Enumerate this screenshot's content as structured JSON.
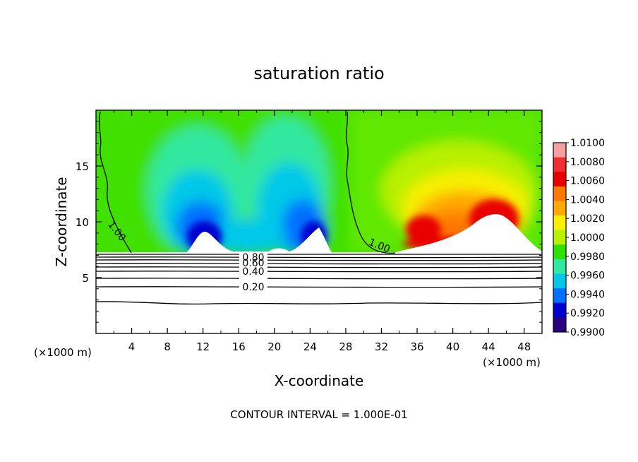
{
  "chart_data": {
    "type": "heatmap",
    "title": "saturation ratio",
    "xlabel": "X-coordinate",
    "ylabel": "Z-coordinate",
    "x_unit_left": "(×1000 m)",
    "x_unit_right": "(×1000 m)",
    "footer": "CONTOUR INTERVAL = 1.000E-01",
    "xlim": [
      0,
      50
    ],
    "ylim": [
      0,
      20
    ],
    "x_ticks": [
      4,
      8,
      12,
      16,
      20,
      24,
      28,
      32,
      36,
      40,
      44,
      48
    ],
    "y_ticks": [
      5,
      10,
      15
    ],
    "colorbar": {
      "ticks": [
        "1.0100",
        "1.0080",
        "1.0060",
        "1.0040",
        "1.0020",
        "1.0000",
        "0.9980",
        "0.9960",
        "0.9940",
        "0.9920",
        "0.9900"
      ],
      "colors": [
        "#f5a0a0",
        "#f03030",
        "#e80000",
        "#ff7800",
        "#ffa800",
        "#f8f000",
        "#b8f000",
        "#30e000",
        "#30e8a0",
        "#00c8e8",
        "#0070ff",
        "#0000d0",
        "#2a0080"
      ]
    },
    "contour_labels": [
      {
        "text": "1.00",
        "x": 2.0,
        "z": 9.5
      },
      {
        "text": "1.00",
        "x": 31.5,
        "z": 7.8
      },
      {
        "text": "0.80",
        "x": 17.5,
        "z": 6.9
      },
      {
        "text": "0.60",
        "x": 17.5,
        "z": 6.4
      },
      {
        "text": "0.40",
        "x": 17.5,
        "z": 5.6
      },
      {
        "text": "0.20",
        "x": 17.5,
        "z": 4.2
      }
    ]
  }
}
